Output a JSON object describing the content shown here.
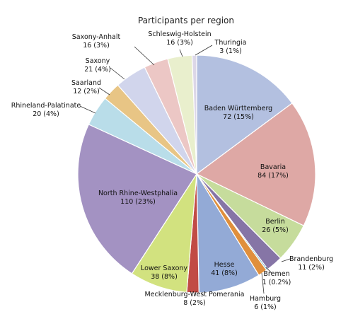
{
  "chart_data": {
    "type": "pie",
    "title": "Participants per region",
    "start_angle_deg": 0,
    "direction": "clockwise",
    "slices": [
      {
        "name": "Baden Württemberg",
        "value": 72,
        "percent": "15%",
        "color": "#b3c0e0"
      },
      {
        "name": "Bavaria",
        "value": 84,
        "percent": "17%",
        "color": "#dea8a5"
      },
      {
        "name": "Berlin",
        "value": 26,
        "percent": "5%",
        "color": "#c6dc9c"
      },
      {
        "name": "Brandenburg",
        "value": 11,
        "percent": "2%",
        "color": "#8675a6"
      },
      {
        "name": "Bremen",
        "value": 1,
        "percent": "0.2%",
        "color": "#5fadc4"
      },
      {
        "name": "Hamburg",
        "value": 6,
        "percent": "1%",
        "color": "#e08f3c"
      },
      {
        "name": "Hesse",
        "value": 41,
        "percent": "8%",
        "color": "#93aad6"
      },
      {
        "name": "Mecklenburg-West Pomerania",
        "value": 8,
        "percent": "2%",
        "color": "#c14b45"
      },
      {
        "name": "Lower Saxony",
        "value": 38,
        "percent": "8%",
        "color": "#d2e27f"
      },
      {
        "name": "North Rhine-Westphalia",
        "value": 110,
        "percent": "23%",
        "color": "#a392c2"
      },
      {
        "name": "Rhineland-Palatinate",
        "value": 20,
        "percent": "4%",
        "color": "#b9dde9"
      },
      {
        "name": "Saarland",
        "value": 12,
        "percent": "2%",
        "color": "#e8c585"
      },
      {
        "name": "Saxony",
        "value": 21,
        "percent": "4%",
        "color": "#d1d5ec"
      },
      {
        "name": "Saxony-Anhalt",
        "value": 16,
        "percent": "3%",
        "color": "#ecc7c5"
      },
      {
        "name": "Schleswig-Holstein",
        "value": 16,
        "percent": "3%",
        "color": "#e9efcd"
      },
      {
        "name": "Thuringia",
        "value": 3,
        "percent": "1%",
        "color": "#dcd7e8"
      }
    ]
  }
}
